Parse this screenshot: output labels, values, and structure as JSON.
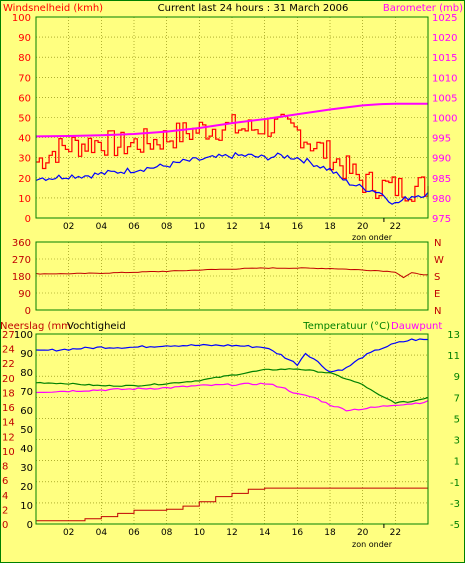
{
  "header": {
    "left_label": "Windsnelheid (kmh)",
    "center_label": "Current last 24 hours : 31 March 2006",
    "right_label": "Barometer (mb)"
  },
  "colors": {
    "background": "#ffff80",
    "grid": "#808000",
    "frame": "#008000",
    "gust": "#ff0000",
    "wind": "#0000ff",
    "barometer": "#ff00ff",
    "direction": "#c00000",
    "rain": "#c00000",
    "humidity": "#0000ff",
    "temperature": "#008000",
    "dewpoint": "#ff00ff",
    "label_red": "#ff0000",
    "label_magenta": "#ff00ff",
    "label_green": "#008000",
    "label_darkred": "#c00000"
  },
  "chart_data": [
    {
      "type": "line",
      "id": "wind",
      "x_ticks": [
        "02",
        "04",
        "06",
        "08",
        "10",
        "12",
        "14",
        "16",
        "18",
        "20",
        "22"
      ],
      "sunset_label": "zon onder",
      "left_axis": {
        "label": "Windsnelheid (kmh)",
        "ylim": [
          0,
          100
        ],
        "ticks": [
          "0",
          "10",
          "20",
          "30",
          "40",
          "50",
          "60",
          "70",
          "80",
          "90",
          "100"
        ]
      },
      "right_axis": {
        "label": "Barometer (mb)",
        "ylim": [
          975,
          1025
        ],
        "ticks": [
          "975",
          "980",
          "985",
          "990",
          "995",
          "1000",
          "1005",
          "1010",
          "1015",
          "1020",
          "1025"
        ]
      },
      "series": [
        {
          "role": "gust",
          "axis": "left",
          "x": [
            0,
            1,
            2,
            3,
            4,
            5,
            6,
            7,
            8,
            9,
            10,
            11,
            12,
            13,
            14,
            15,
            16,
            17,
            18,
            19,
            20,
            21,
            22,
            23,
            24
          ],
          "values": [
            28,
            33,
            36,
            37,
            38,
            36,
            37,
            38,
            40,
            42,
            44,
            45,
            45,
            44,
            46,
            45,
            43,
            36,
            31,
            24,
            18,
            16,
            15,
            15,
            16
          ]
        },
        {
          "role": "wind",
          "axis": "left",
          "x": [
            0,
            1,
            2,
            3,
            4,
            5,
            6,
            7,
            8,
            9,
            10,
            11,
            12,
            13,
            14,
            15,
            16,
            17,
            18,
            19,
            20,
            21,
            22,
            23,
            24
          ],
          "values": [
            20,
            20,
            21,
            21,
            22,
            23,
            24,
            25,
            26,
            28,
            29,
            30,
            31,
            31,
            30,
            31,
            30,
            27,
            24,
            18,
            15,
            13,
            7,
            11,
            12
          ]
        },
        {
          "role": "barometer",
          "axis": "right",
          "x": [
            0,
            2,
            4,
            6,
            8,
            10,
            12,
            14,
            16,
            18,
            20,
            21,
            22,
            23,
            24
          ],
          "values": [
            995.3,
            995.4,
            995.6,
            995.9,
            996.5,
            997.4,
            998.6,
            999.6,
            1000.8,
            1002.0,
            1003.0,
            1003.3,
            1003.4,
            1003.4,
            1003.4
          ]
        }
      ]
    },
    {
      "type": "line",
      "id": "direction",
      "x_ticks": [
        "02",
        "04",
        "06",
        "08",
        "10",
        "12",
        "14",
        "16",
        "18",
        "20",
        "22"
      ],
      "left_axis": {
        "ylim": [
          0,
          360
        ],
        "ticks": [
          "0",
          "90",
          "180",
          "270",
          "360"
        ]
      },
      "right_axis": {
        "ticks": [
          "N",
          "E",
          "S",
          "W",
          "N"
        ]
      },
      "series": [
        {
          "role": "direction",
          "x": [
            0,
            2,
            4,
            6,
            8,
            10,
            12,
            14,
            16,
            18,
            20,
            21,
            22,
            22.5,
            23,
            24
          ],
          "values": [
            192,
            192,
            195,
            200,
            205,
            212,
            217,
            222,
            222,
            220,
            212,
            208,
            202,
            172,
            196,
            185
          ]
        }
      ]
    },
    {
      "type": "line",
      "id": "weather",
      "x_ticks": [
        "02",
        "04",
        "06",
        "08",
        "10",
        "12",
        "14",
        "16",
        "18",
        "20",
        "22"
      ],
      "sunset_label": "zon onder",
      "axis_labels": {
        "rain": "Neerslag (mm",
        "humidity": "Vochtigheid",
        "temperature": "Temperatuur (°C)",
        "dewpoint": "Dauwpunt"
      },
      "left_axis_outer": {
        "label": "Neerslag (mm",
        "ticks": [
          "0",
          "2",
          "4",
          "6",
          "8",
          "10",
          "12",
          "14",
          "16",
          "18",
          "20",
          "22",
          "24",
          "27"
        ]
      },
      "left_axis_inner": {
        "label": "Vochtigheid",
        "ylim": [
          0,
          100
        ],
        "ticks": [
          "0",
          "10",
          "20",
          "30",
          "40",
          "50",
          "60",
          "70",
          "80",
          "90",
          "100"
        ]
      },
      "right_axis": {
        "label": "Temperatuur (°C)",
        "ylim": [
          -5,
          13
        ],
        "ticks": [
          "-5",
          "-3",
          "-1",
          "1",
          "3",
          "5",
          "7",
          "9",
          "11",
          "13"
        ]
      },
      "series": [
        {
          "role": "humidity",
          "axis": "inner",
          "x": [
            0,
            2,
            4,
            6,
            8,
            10,
            12,
            14,
            15,
            16,
            16.5,
            17,
            18,
            19,
            20,
            21,
            22,
            23,
            24
          ],
          "values": [
            91,
            92,
            93,
            93,
            94,
            94,
            94,
            93,
            89,
            84,
            90,
            87,
            80,
            82,
            88,
            92,
            95,
            97,
            97
          ]
        },
        {
          "role": "temperature",
          "axis": "right",
          "x": [
            0,
            2,
            4,
            6,
            8,
            10,
            12,
            14,
            16,
            18,
            20,
            21,
            22,
            23,
            24
          ],
          "values": [
            8.4,
            8.3,
            8.1,
            8.1,
            8.3,
            8.6,
            9.1,
            9.6,
            9.7,
            9.3,
            8.2,
            7.2,
            6.5,
            6.6,
            7.0
          ]
        },
        {
          "role": "dewpoint",
          "axis": "right",
          "x": [
            0,
            2,
            4,
            6,
            8,
            10,
            12,
            14,
            15,
            16,
            17,
            18,
            19,
            20,
            21,
            22,
            23,
            24
          ],
          "values": [
            7.5,
            7.6,
            7.7,
            7.8,
            7.9,
            8.1,
            8.2,
            8.3,
            8.0,
            7.3,
            7.0,
            6.3,
            5.8,
            5.9,
            6.1,
            6.3,
            6.4,
            6.6
          ]
        },
        {
          "role": "rain",
          "axis": "right",
          "x": [
            0,
            2,
            3,
            4,
            5,
            6,
            8,
            9,
            10,
            11,
            12,
            13,
            14,
            15,
            16,
            18,
            20,
            22,
            24
          ],
          "values": [
            -4.7,
            -4.7,
            -4.5,
            -4.3,
            -4.0,
            -3.7,
            -3.6,
            -3.3,
            -2.9,
            -2.4,
            -2.1,
            -1.7,
            -1.6,
            -1.6,
            -1.6,
            -1.6,
            -1.6,
            -1.6,
            -1.6
          ]
        }
      ]
    }
  ]
}
